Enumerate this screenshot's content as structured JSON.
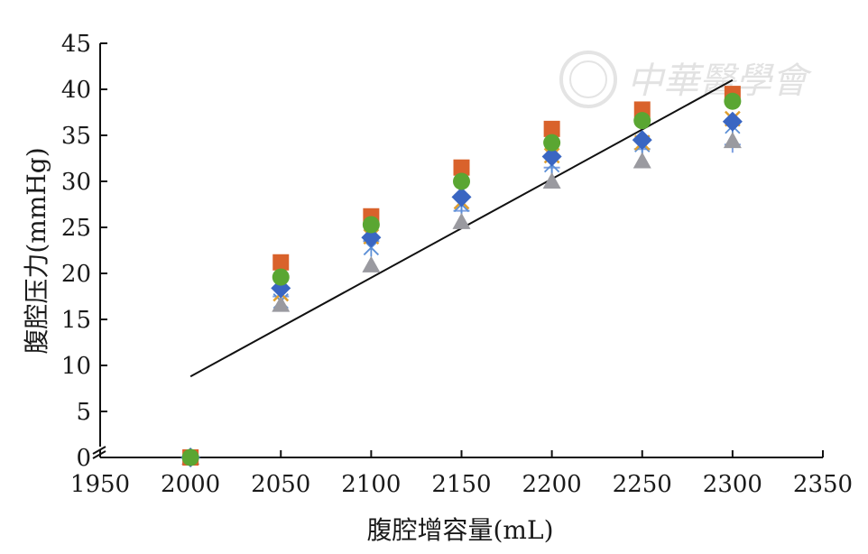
{
  "chart_data": {
    "type": "scatter",
    "xlabel": "腹腔增容量(mL)",
    "ylabel": "腹腔压力(mmHg)",
    "xlim": [
      1950,
      2350
    ],
    "ylim": [
      0,
      45
    ],
    "x_ticks": [
      "1950",
      "2000",
      "2050",
      "2100",
      "2150",
      "2200",
      "2250",
      "2300",
      "2350"
    ],
    "y_ticks": [
      "0",
      "5",
      "10",
      "15",
      "20",
      "25",
      "30",
      "35",
      "40",
      "45"
    ],
    "x_tick_values": [
      1950,
      2000,
      2050,
      2100,
      2150,
      2200,
      2250,
      2300,
      2350
    ],
    "y_tick_values": [
      0,
      5,
      10,
      15,
      20,
      25,
      30,
      35,
      40,
      45
    ],
    "axis_break": "y-axis near 0",
    "grid": false,
    "legend": "none",
    "x": [
      2000,
      2050,
      2100,
      2150,
      2200,
      2250,
      2300
    ],
    "series": [
      {
        "marker": "square",
        "color": "#d9622b",
        "values": [
          0,
          21.2,
          26.2,
          31.5,
          35.7,
          37.8,
          39.5
        ]
      },
      {
        "marker": "circle",
        "color": "#5aa632",
        "values": [
          0,
          19.6,
          25.3,
          30.0,
          34.2,
          36.6,
          38.7
        ]
      },
      {
        "marker": "diamond",
        "color": "#3a66c2",
        "values": [
          0,
          18.4,
          23.9,
          28.3,
          32.7,
          34.5,
          36.5
        ]
      },
      {
        "marker": "x",
        "color": "#e0a030",
        "values": [
          0,
          17.8,
          24.0,
          27.8,
          32.8,
          34.2,
          36.8
        ]
      },
      {
        "marker": "star",
        "color": "#5b8fd6",
        "values": [
          0,
          17.0,
          22.8,
          27.5,
          31.8,
          34.0,
          36.0
        ]
      },
      {
        "marker": "plus",
        "color": "#7fa0e0",
        "values": [
          0,
          17.5,
          23.5,
          26.8,
          31.5,
          33.5,
          34.0
        ]
      },
      {
        "marker": "triangle",
        "color": "#9a9aa0",
        "values": [
          0,
          16.6,
          20.9,
          25.6,
          30.0,
          32.2,
          34.4
        ]
      }
    ],
    "trendline": {
      "type": "linear",
      "color": "#111111",
      "x": [
        2000,
        2300
      ],
      "y": [
        8.8,
        41.0
      ]
    }
  },
  "watermark": {
    "text": "中華醫學會",
    "kind": "logo"
  }
}
